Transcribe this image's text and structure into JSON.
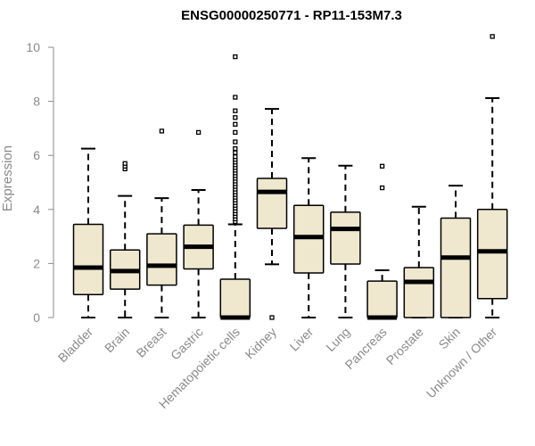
{
  "chart_data": {
    "type": "boxplot",
    "title": "ENSG00000250771 - RP11-153M7.3",
    "xlabel": "",
    "ylabel": "Expression",
    "ylim": [
      0,
      10.5
    ],
    "yticks": [
      0,
      2,
      4,
      6,
      8,
      10
    ],
    "box_fill": "#efe8cf",
    "categories": [
      "Bladder",
      "Brain",
      "Breast",
      "Gastric",
      "Hematopoietic cells",
      "Kidney",
      "Liver",
      "Lung",
      "Pancreas",
      "Prostate",
      "Skin",
      "Unknown / Other"
    ],
    "series": [
      {
        "name": "Bladder",
        "min": 0,
        "q1": 0.85,
        "median": 1.85,
        "q3": 3.45,
        "max": 6.25,
        "outliers": []
      },
      {
        "name": "Brain",
        "min": 0,
        "q1": 1.05,
        "median": 1.72,
        "q3": 2.5,
        "max": 4.5,
        "outliers": [
          5.5,
          5.6,
          5.7
        ]
      },
      {
        "name": "Breast",
        "min": 0,
        "q1": 1.2,
        "median": 1.92,
        "q3": 3.1,
        "max": 4.42,
        "outliers": [
          6.9
        ]
      },
      {
        "name": "Gastric",
        "min": 0,
        "q1": 1.8,
        "median": 2.62,
        "q3": 3.42,
        "max": 4.72,
        "outliers": [
          6.85
        ]
      },
      {
        "name": "Hematopoietic cells",
        "min": 0,
        "q1": 0,
        "median": 0,
        "q3": 1.42,
        "max": 3.45,
        "outliers": [
          3.55,
          3.65,
          3.75,
          3.85,
          3.95,
          4.05,
          4.15,
          4.25,
          4.35,
          4.45,
          4.55,
          4.65,
          4.75,
          4.85,
          4.95,
          5.05,
          5.15,
          5.25,
          5.35,
          5.45,
          5.55,
          5.65,
          5.75,
          5.85,
          5.95,
          6.1,
          6.25,
          6.5,
          6.85,
          7.15,
          7.4,
          7.65,
          8.15,
          9.65
        ]
      },
      {
        "name": "Kidney",
        "min": 1.97,
        "q1": 3.3,
        "median": 4.65,
        "q3": 5.15,
        "max": 7.72,
        "outliers": [
          0
        ]
      },
      {
        "name": "Liver",
        "min": 0,
        "q1": 1.65,
        "median": 2.98,
        "q3": 4.15,
        "max": 5.9,
        "outliers": []
      },
      {
        "name": "Lung",
        "min": 0,
        "q1": 1.98,
        "median": 3.28,
        "q3": 3.9,
        "max": 5.62,
        "outliers": []
      },
      {
        "name": "Pancreas",
        "min": 0,
        "q1": 0,
        "median": 0,
        "q3": 1.35,
        "max": 1.75,
        "outliers": [
          4.8,
          5.6
        ]
      },
      {
        "name": "Prostate",
        "min": 0,
        "q1": 0,
        "median": 1.32,
        "q3": 1.85,
        "max": 4.1,
        "outliers": []
      },
      {
        "name": "Skin",
        "min": 0,
        "q1": 0,
        "median": 2.22,
        "q3": 3.68,
        "max": 4.88,
        "outliers": []
      },
      {
        "name": "Unknown / Other",
        "min": 0,
        "q1": 0.7,
        "median": 2.45,
        "q3": 4.0,
        "max": 8.12,
        "outliers": [
          10.4
        ]
      }
    ]
  }
}
